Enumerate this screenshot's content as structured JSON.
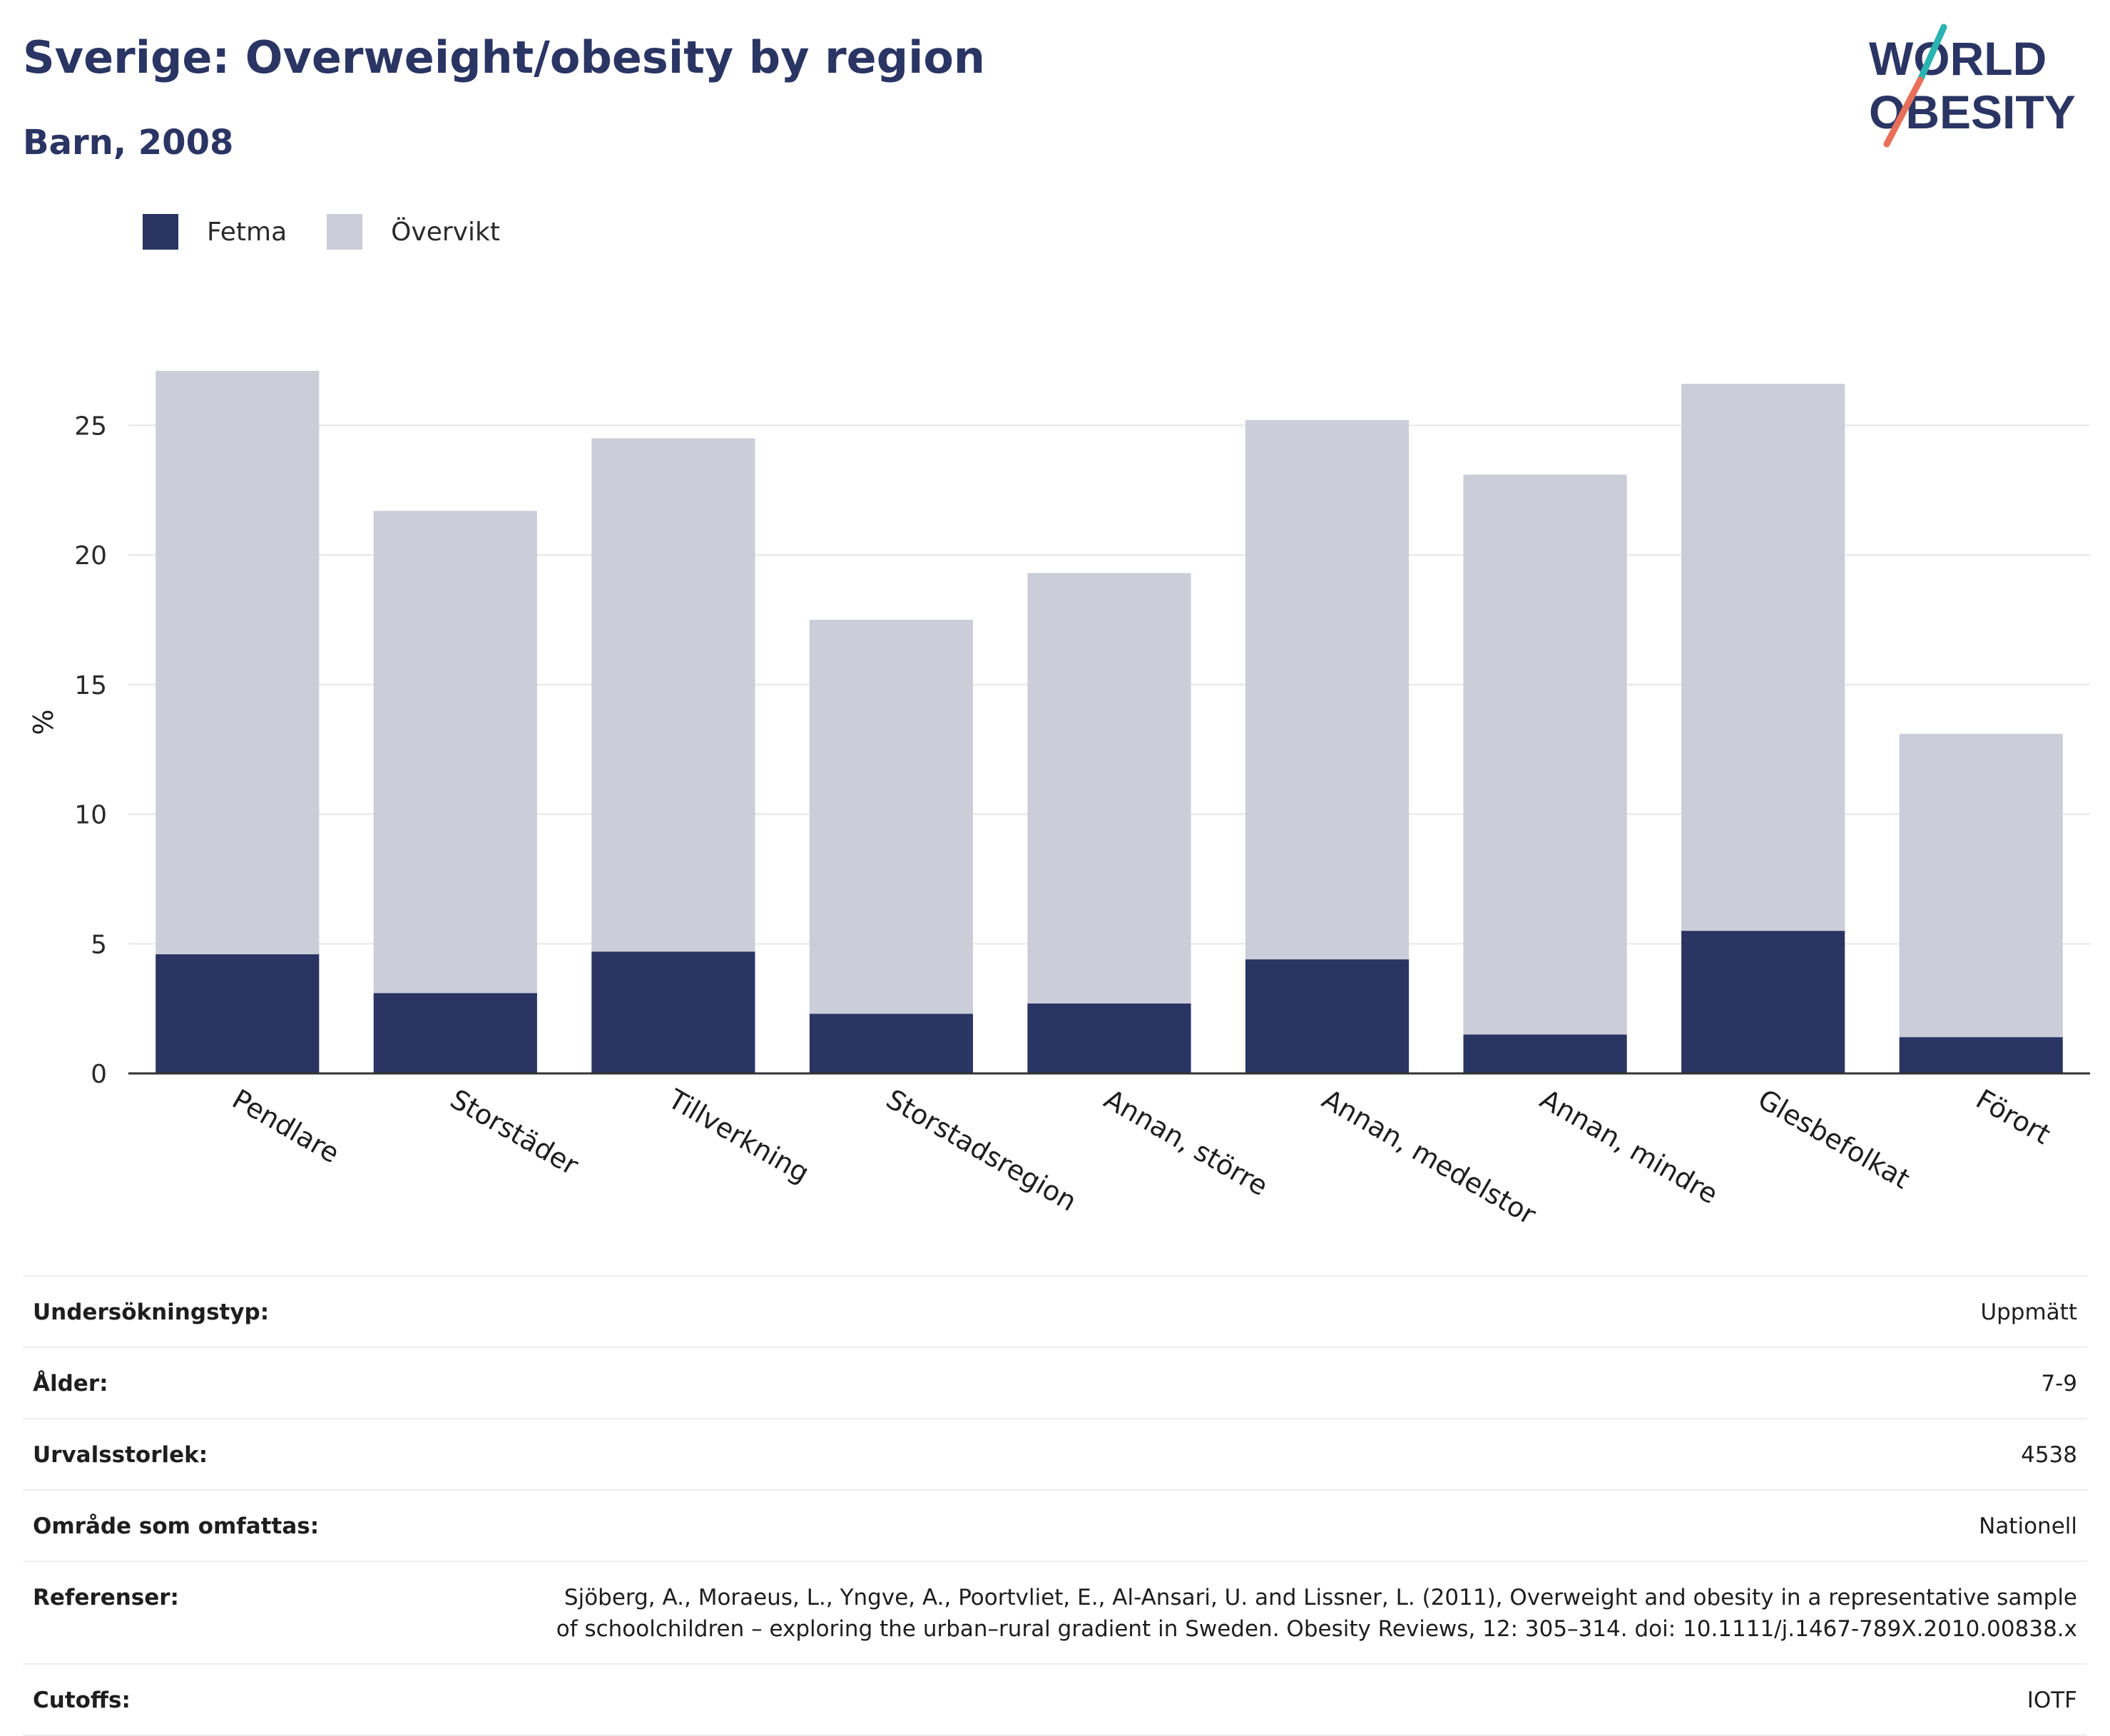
{
  "header": {
    "title": "Sverige: Overweight/obesity by region",
    "subtitle": "Barn, 2008"
  },
  "logo": {
    "line1": "WORLD",
    "line2": "OBESITY",
    "text_color": "#2a3564",
    "accent_top": "#2bb3b1",
    "accent_bottom": "#e8705a"
  },
  "legend": [
    {
      "label": "Fetma",
      "color": "#2a3564"
    },
    {
      "label": "Övervikt",
      "color": "#cbcdd9"
    }
  ],
  "chart_data": {
    "type": "bar",
    "stacked": true,
    "categories": [
      "Pendlare",
      "Storstäder",
      "Tillverkning",
      "Storstadsregion",
      "Annan, större",
      "Annan, medelstor",
      "Annan, mindre",
      "Glesbefolkat",
      "Förort"
    ],
    "series": [
      {
        "name": "Fetma",
        "color": "#2a3564",
        "values": [
          4.6,
          3.1,
          4.7,
          2.3,
          2.7,
          4.4,
          1.5,
          5.5,
          1.4
        ]
      },
      {
        "name": "Övervikt",
        "color": "#cbcdd9",
        "values": [
          22.5,
          18.6,
          19.8,
          15.2,
          16.6,
          20.8,
          21.6,
          21.1,
          11.7
        ]
      }
    ],
    "ylabel": "%",
    "xlabel": "",
    "ylim": [
      0,
      27.1
    ],
    "yticks": [
      0,
      5,
      10,
      15,
      20,
      25
    ],
    "grid": true
  },
  "meta": [
    {
      "label": "Undersökningstyp:",
      "value": "Uppmätt"
    },
    {
      "label": "Ålder:",
      "value": "7-9"
    },
    {
      "label": "Urvalsstorlek:",
      "value": "4538"
    },
    {
      "label": "Område som omfattas:",
      "value": "Nationell"
    },
    {
      "label": "Referenser:",
      "value": "Sjöberg, A., Moraeus, L., Yngve, A., Poortvliet, E., Al-Ansari, U. and Lissner, L. (2011), Overweight and obesity in a representative sample of schoolchildren – exploring the urban–rural gradient in Sweden. Obesity Reviews, 12: 305–314. doi: 10.1111/j.1467-789X.2010.00838.x"
    },
    {
      "label": "Cutoffs:",
      "value": "IOTF"
    }
  ]
}
